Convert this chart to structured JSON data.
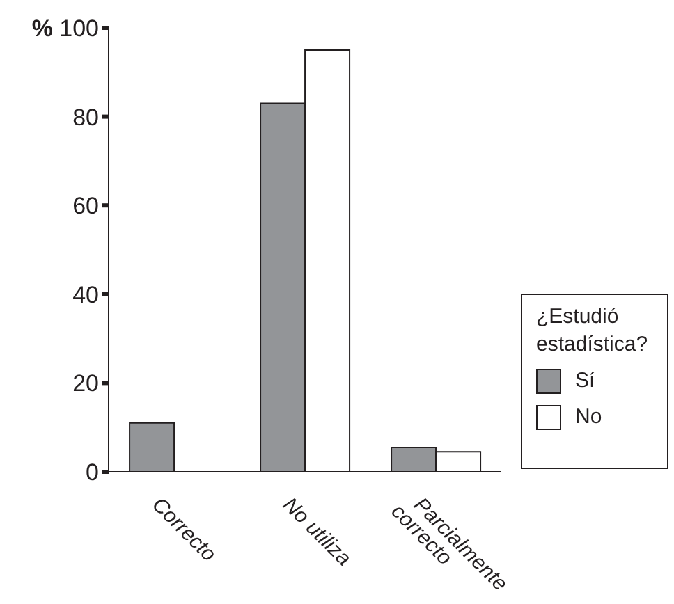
{
  "chart_data": {
    "type": "bar",
    "ylabel": "%",
    "legend_title": "¿Estudió estadística?",
    "categories": [
      "Correcto",
      "No utiliza",
      "Parcialmente correcto"
    ],
    "series": [
      {
        "name": "Sí",
        "color": "#939598",
        "values": [
          11,
          83,
          5.5
        ]
      },
      {
        "name": "No",
        "color": "#ffffff",
        "values": [
          0,
          95,
          4.5
        ]
      }
    ],
    "ylim": [
      0,
      100
    ],
    "yticks": [
      0,
      20,
      40,
      60,
      80,
      100
    ],
    "grid": false,
    "legend": "right"
  }
}
